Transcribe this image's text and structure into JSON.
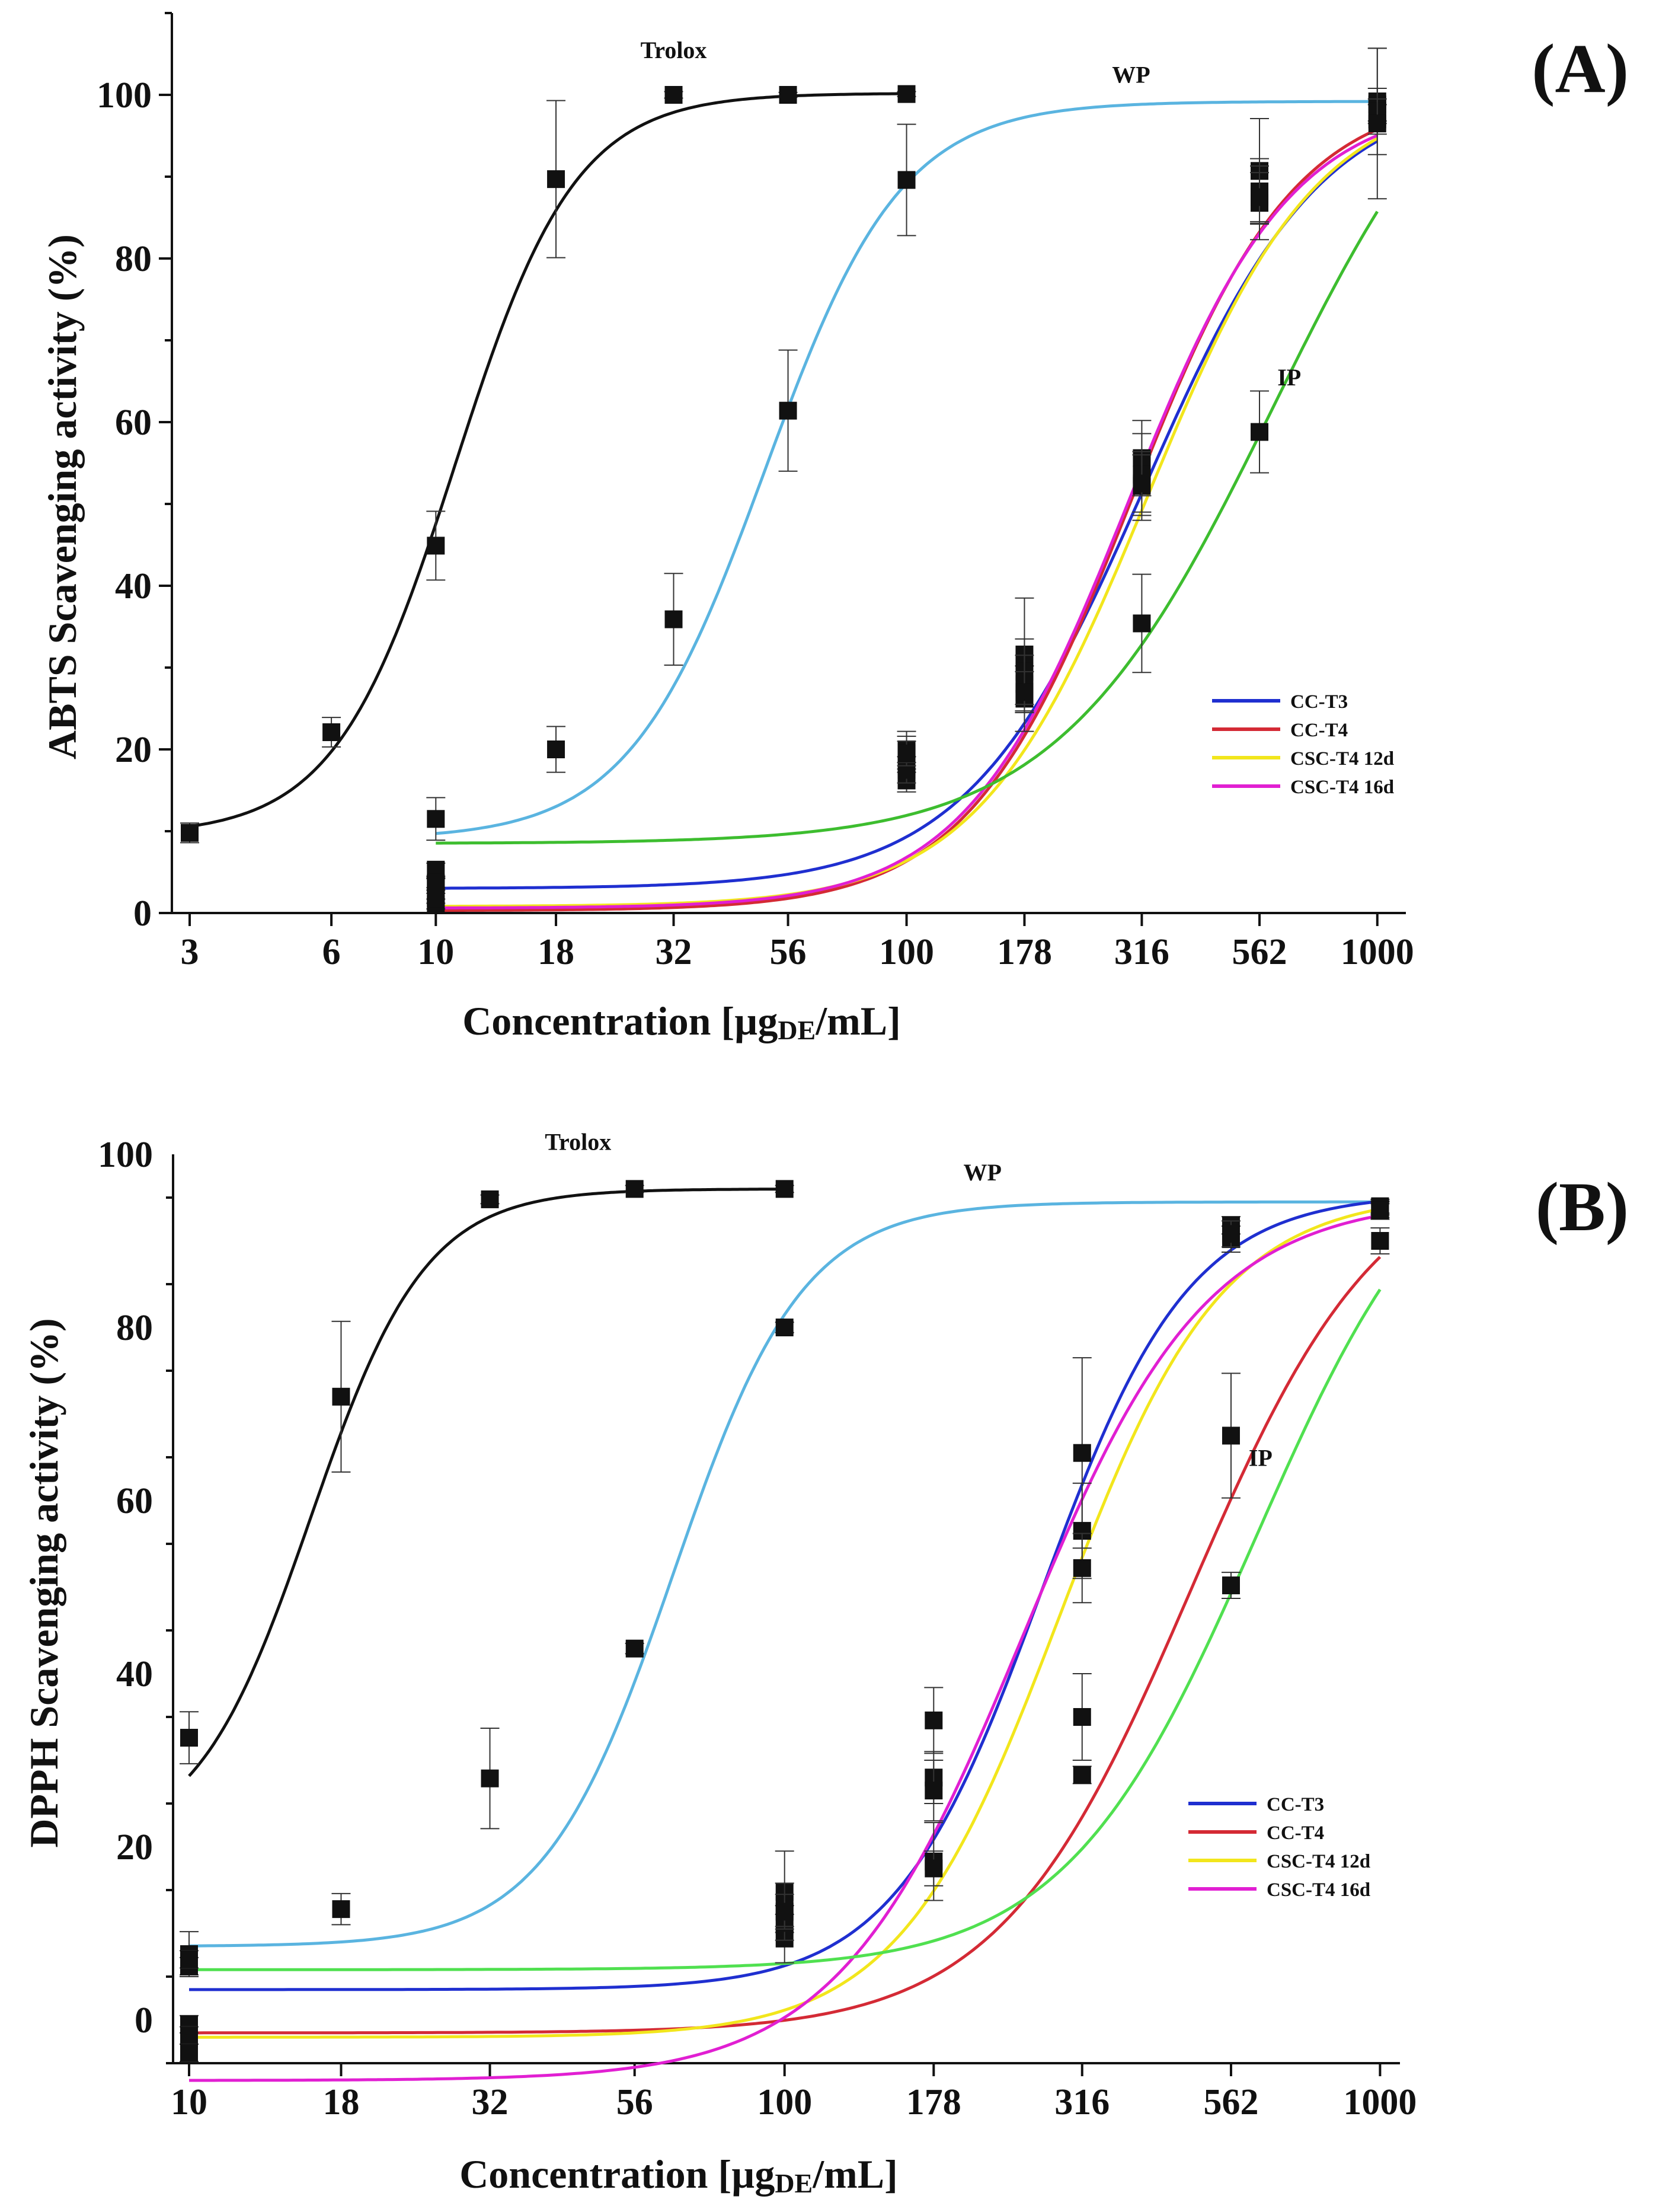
{
  "figure": {
    "description_free": true
  },
  "chart_data": [
    {
      "type": "scatter",
      "panel_label": "(A)",
      "ylabel": "ABTS Scavenging activity (%)",
      "xlabel_main": "Concentration [µg",
      "xlabel_sub": "DE",
      "xlabel_end": "/mL]",
      "xscale": "log",
      "xlim": [
        2.75,
        1150
      ],
      "ylim": [
        0,
        110
      ],
      "xticks": [
        3,
        6,
        10,
        18,
        32,
        56,
        100,
        178,
        316,
        562,
        1000
      ],
      "xtick_labels": [
        "3",
        "6",
        "10",
        "18",
        "32",
        "56",
        "100",
        "178",
        "316",
        "562",
        "1000"
      ],
      "yticks": [
        0,
        20,
        40,
        60,
        80,
        100
      ],
      "ytick_labels": [
        "0",
        "20",
        "40",
        "60",
        "80",
        "100"
      ],
      "legend_position": "lower-right",
      "series": [
        {
          "name": "Trolox",
          "label": "Trolox",
          "color": "#111111",
          "in_legend": false,
          "label_at": [
            32,
            104.5
          ],
          "fit": {
            "bottom": 9.5,
            "top": 100.2,
            "ec50": 11.0,
            "hill": 3.4,
            "x_range": [
              3,
              100
            ]
          },
          "points": [
            {
              "x": 3,
              "y": 9.8,
              "err": 1.2
            },
            {
              "x": 6,
              "y": 22.1,
              "err": 1.8
            },
            {
              "x": 10,
              "y": 44.9,
              "err": 4.2
            },
            {
              "x": 18,
              "y": 89.7,
              "err": 9.6
            },
            {
              "x": 32,
              "y": 100.0,
              "err": 0.4
            },
            {
              "x": 56,
              "y": 100.0,
              "err": 0.3
            },
            {
              "x": 100,
              "y": 100.1,
              "err": 0.3
            }
          ]
        },
        {
          "name": "WP",
          "label": "WP",
          "color": "#5ab4e0",
          "in_legend": false,
          "label_at": [
            300,
            101.5
          ],
          "fit": {
            "bottom": 9.0,
            "top": 99.2,
            "ec50": 50.0,
            "hill": 3.0,
            "x_range": [
              10,
              1000
            ]
          },
          "points": [
            {
              "x": 10,
              "y": 11.5,
              "err": 2.6
            },
            {
              "x": 18,
              "y": 20.0,
              "err": 2.8
            },
            {
              "x": 32,
              "y": 35.9,
              "err": 5.6
            },
            {
              "x": 56,
              "y": 61.4,
              "err": 7.4
            },
            {
              "x": 100,
              "y": 89.6,
              "err": 6.8
            }
          ]
        },
        {
          "name": "CC-T3",
          "label": "CC-T3",
          "color": "#1f2fd0",
          "in_legend": true,
          "fit": {
            "bottom": 3.0,
            "top": 101.0,
            "ec50": 320.0,
            "hill": 2.3,
            "x_range": [
              10,
              1000
            ]
          },
          "points": [
            {
              "x": 10,
              "y": 5.3,
              "err": 0.8
            },
            {
              "x": 100,
              "y": 19.7,
              "err": 2.5
            },
            {
              "x": 178,
              "y": 31.6,
              "err": 6.9
            },
            {
              "x": 316,
              "y": 55.6,
              "err": 4.6
            },
            {
              "x": 562,
              "y": 90.7,
              "err": 6.4
            },
            {
              "x": 1000,
              "y": 99.2,
              "err": 6.5
            }
          ]
        },
        {
          "name": "CC-T4",
          "label": "CC-T4",
          "color": "#d42a35",
          "in_legend": true,
          "fit": {
            "bottom": 0.3,
            "top": 100.5,
            "ec50": 300.0,
            "hill": 2.5,
            "x_range": [
              10,
              1000
            ]
          },
          "points": [
            {
              "x": 10,
              "y": 1.1,
              "err": 0.6
            },
            {
              "x": 100,
              "y": 16.2,
              "err": 1.4
            },
            {
              "x": 178,
              "y": 26.2,
              "err": 4.0
            },
            {
              "x": 316,
              "y": 53.6,
              "err": 5.0
            },
            {
              "x": 562,
              "y": 88.2,
              "err": 4.0
            },
            {
              "x": 1000,
              "y": 98.8,
              "err": 2.0
            }
          ]
        },
        {
          "name": "CSC-T4 12d",
          "label": "CSC-T4 12d",
          "color": "#f2e61c",
          "in_legend": true,
          "fit": {
            "bottom": 0.8,
            "top": 101.0,
            "ec50": 325.0,
            "hill": 2.4,
            "x_range": [
              10,
              1000
            ]
          },
          "points": [
            {
              "x": 10,
              "y": 1.8,
              "err": 0.6
            },
            {
              "x": 100,
              "y": 17.5,
              "err": 1.6
            },
            {
              "x": 178,
              "y": 29.5,
              "err": 4.0
            },
            {
              "x": 316,
              "y": 52.2,
              "err": 4.2
            },
            {
              "x": 562,
              "y": 86.8,
              "err": 4.5
            },
            {
              "x": 1000,
              "y": 97.0,
              "err": 1.8
            }
          ]
        },
        {
          "name": "CSC-T4 16d",
          "label": "CSC-T4 16d",
          "color": "#e11fd2",
          "in_legend": true,
          "fit": {
            "bottom": 0.6,
            "top": 99.5,
            "ec50": 295.0,
            "hill": 2.5,
            "x_range": [
              10,
              1000
            ]
          },
          "points": [
            {
              "x": 10,
              "y": 3.5,
              "err": 0.7
            },
            {
              "x": 100,
              "y": 20.0,
              "err": 1.6
            },
            {
              "x": 178,
              "y": 28.0,
              "err": 3.5
            },
            {
              "x": 316,
              "y": 52.5,
              "err": 3.5
            },
            {
              "x": 562,
              "y": 87.5,
              "err": 3.0
            },
            {
              "x": 1000,
              "y": 98.0,
              "err": 1.5
            }
          ]
        },
        {
          "name": "IP",
          "label": "IP",
          "color": "#3dbd2f",
          "in_legend": false,
          "label_at": [
            650,
            64.5
          ],
          "fit": {
            "bottom": 8.5,
            "top": 115.0,
            "ec50": 600.0,
            "hill": 1.9,
            "x_range": [
              10,
              1000
            ]
          },
          "points": [
            {
              "x": 10,
              "y": 3.7,
              "err": 0.6
            },
            {
              "x": 100,
              "y": 19.5,
              "err": 1.5
            },
            {
              "x": 178,
              "y": 27.0,
              "err": 2.5
            },
            {
              "x": 316,
              "y": 35.4,
              "err": 6.0
            },
            {
              "x": 562,
              "y": 58.8,
              "err": 5.0
            },
            {
              "x": 1000,
              "y": 96.5,
              "err": 9.2
            }
          ]
        }
      ]
    },
    {
      "type": "scatter",
      "panel_label": "(B)",
      "ylabel": "DPPH Scavenging activity (%)",
      "xlabel_main": "Concentration [µg",
      "xlabel_sub": "DE",
      "xlabel_end": "/mL]",
      "xscale": "log",
      "xlim": [
        9.4,
        1080
      ],
      "ylim": [
        -5,
        100
      ],
      "xticks": [
        10,
        18,
        32,
        56,
        100,
        178,
        316,
        562,
        1000
      ],
      "xtick_labels": [
        "10",
        "18",
        "32",
        "56",
        "100",
        "178",
        "316",
        "562",
        "1000"
      ],
      "yticks": [
        0,
        20,
        40,
        60,
        80,
        100
      ],
      "ytick_labels": [
        "0",
        "20",
        "40",
        "60",
        "80",
        "100"
      ],
      "legend_position": "lower-right",
      "series": [
        {
          "name": "Trolox",
          "label": "Trolox",
          "color": "#111111",
          "in_legend": false,
          "label_at": [
            45,
            100.5
          ],
          "fit": {
            "bottom": 20.0,
            "top": 96.0,
            "ec50": 16.0,
            "hill": 4.5,
            "x_range": [
              10,
              100
            ]
          },
          "points": [
            {
              "x": 10,
              "y": 32.6,
              "err": 3.0
            },
            {
              "x": 18,
              "y": 72.0,
              "err": 8.7
            },
            {
              "x": 32,
              "y": 27.9,
              "err": 5.8
            },
            {
              "x": 32,
              "y": 94.8,
              "err": 0.5
            },
            {
              "x": 56,
              "y": 96.0,
              "err": 0.4
            },
            {
              "x": 100,
              "y": 96.0,
              "err": 0.4
            }
          ]
        },
        {
          "name": "WP",
          "label": "WP",
          "color": "#5ab4e0",
          "in_legend": false,
          "label_at": [
            215,
            97.0
          ],
          "fit": {
            "bottom": 8.5,
            "top": 94.5,
            "ec50": 65.0,
            "hill": 4.0,
            "x_range": [
              10,
              1000
            ]
          },
          "points": [
            {
              "x": 10,
              "y": 7.6,
              "err": 2.6
            },
            {
              "x": 18,
              "y": 12.8,
              "err": 1.8
            },
            {
              "x": 56,
              "y": 42.9,
              "err": 0.6
            },
            {
              "x": 100,
              "y": 80.0,
              "err": 0.6
            }
          ]
        },
        {
          "name": "CC-T3",
          "label": "CC-T3",
          "color": "#1f2fd0",
          "in_legend": true,
          "fit": {
            "bottom": 3.5,
            "top": 95.5,
            "ec50": 270.0,
            "hill": 3.5,
            "x_range": [
              10,
              1000
            ]
          },
          "points": [
            {
              "x": 10,
              "y": 6.2,
              "err": 1.0
            },
            {
              "x": 100,
              "y": 14.8,
              "err": 4.7
            },
            {
              "x": 178,
              "y": 28.0,
              "err": 3.0
            },
            {
              "x": 316,
              "y": 65.5,
              "err": 11.0
            },
            {
              "x": 562,
              "y": 91.8,
              "err": 1.0
            },
            {
              "x": 1000,
              "y": 94.0,
              "err": 0.8
            }
          ]
        },
        {
          "name": "CC-T4",
          "label": "CC-T4",
          "color": "#d42a35",
          "in_legend": true,
          "fit": {
            "bottom": -1.5,
            "top": 100.5,
            "ec50": 480.0,
            "hill": 2.7,
            "x_range": [
              10,
              1000
            ]
          },
          "points": [
            {
              "x": 10,
              "y": -0.5,
              "err": 1.0
            },
            {
              "x": 100,
              "y": 9.4,
              "err": 2.8
            },
            {
              "x": 178,
              "y": 18.3,
              "err": 4.5
            },
            {
              "x": 316,
              "y": 35.0,
              "err": 5.0
            },
            {
              "x": 562,
              "y": 67.5,
              "err": 7.2
            },
            {
              "x": 1000,
              "y": 93.5,
              "err": 1.0
            }
          ]
        },
        {
          "name": "CSC-T4 12d",
          "label": "CSC-T4 12d",
          "color": "#f2e61c",
          "in_legend": true,
          "fit": {
            "bottom": -2.0,
            "top": 95.5,
            "ec50": 290.0,
            "hill": 3.2,
            "x_range": [
              10,
              1000
            ]
          },
          "points": [
            {
              "x": 10,
              "y": -1.8,
              "err": 1.0
            },
            {
              "x": 100,
              "y": 11.2,
              "err": 2.0
            },
            {
              "x": 178,
              "y": 26.5,
              "err": 3.5
            },
            {
              "x": 316,
              "y": 56.5,
              "err": 5.5
            },
            {
              "x": 562,
              "y": 90.2,
              "err": 1.5
            },
            {
              "x": 1000,
              "y": 93.8,
              "err": 0.8
            }
          ]
        },
        {
          "name": "CSC-T4 16d",
          "label": "CSC-T4 16d",
          "color": "#e11fd2",
          "in_legend": true,
          "fit": {
            "bottom": -7.0,
            "top": 95.0,
            "ec50": 250.0,
            "hill": 2.8,
            "x_range": [
              10,
              1000
            ]
          },
          "points": [
            {
              "x": 10,
              "y": -3.8,
              "err": 1.0
            },
            {
              "x": 100,
              "y": 13.3,
              "err": 2.5
            },
            {
              "x": 178,
              "y": 34.6,
              "err": 3.8
            },
            {
              "x": 316,
              "y": 52.2,
              "err": 4.0
            },
            {
              "x": 562,
              "y": 90.8,
              "err": 1.5
            },
            {
              "x": 1000,
              "y": 93.5,
              "err": 0.8
            }
          ]
        },
        {
          "name": "IP",
          "label": "IP",
          "color": "#50e050",
          "in_legend": false,
          "label_at": [
            630,
            64.0
          ],
          "fit": {
            "bottom": 5.8,
            "top": 106.0,
            "ec50": 620.0,
            "hill": 2.7,
            "x_range": [
              10,
              1000
            ]
          },
          "points": [
            {
              "x": 10,
              "y": 7.0,
              "err": 1.0
            },
            {
              "x": 100,
              "y": 12.5,
              "err": 2.0
            },
            {
              "x": 178,
              "y": 17.5,
              "err": 2.0
            },
            {
              "x": 316,
              "y": 28.3,
              "err": 1.0
            },
            {
              "x": 562,
              "y": 50.2,
              "err": 1.5
            },
            {
              "x": 1000,
              "y": 90.0,
              "err": 1.5
            }
          ]
        }
      ]
    }
  ]
}
